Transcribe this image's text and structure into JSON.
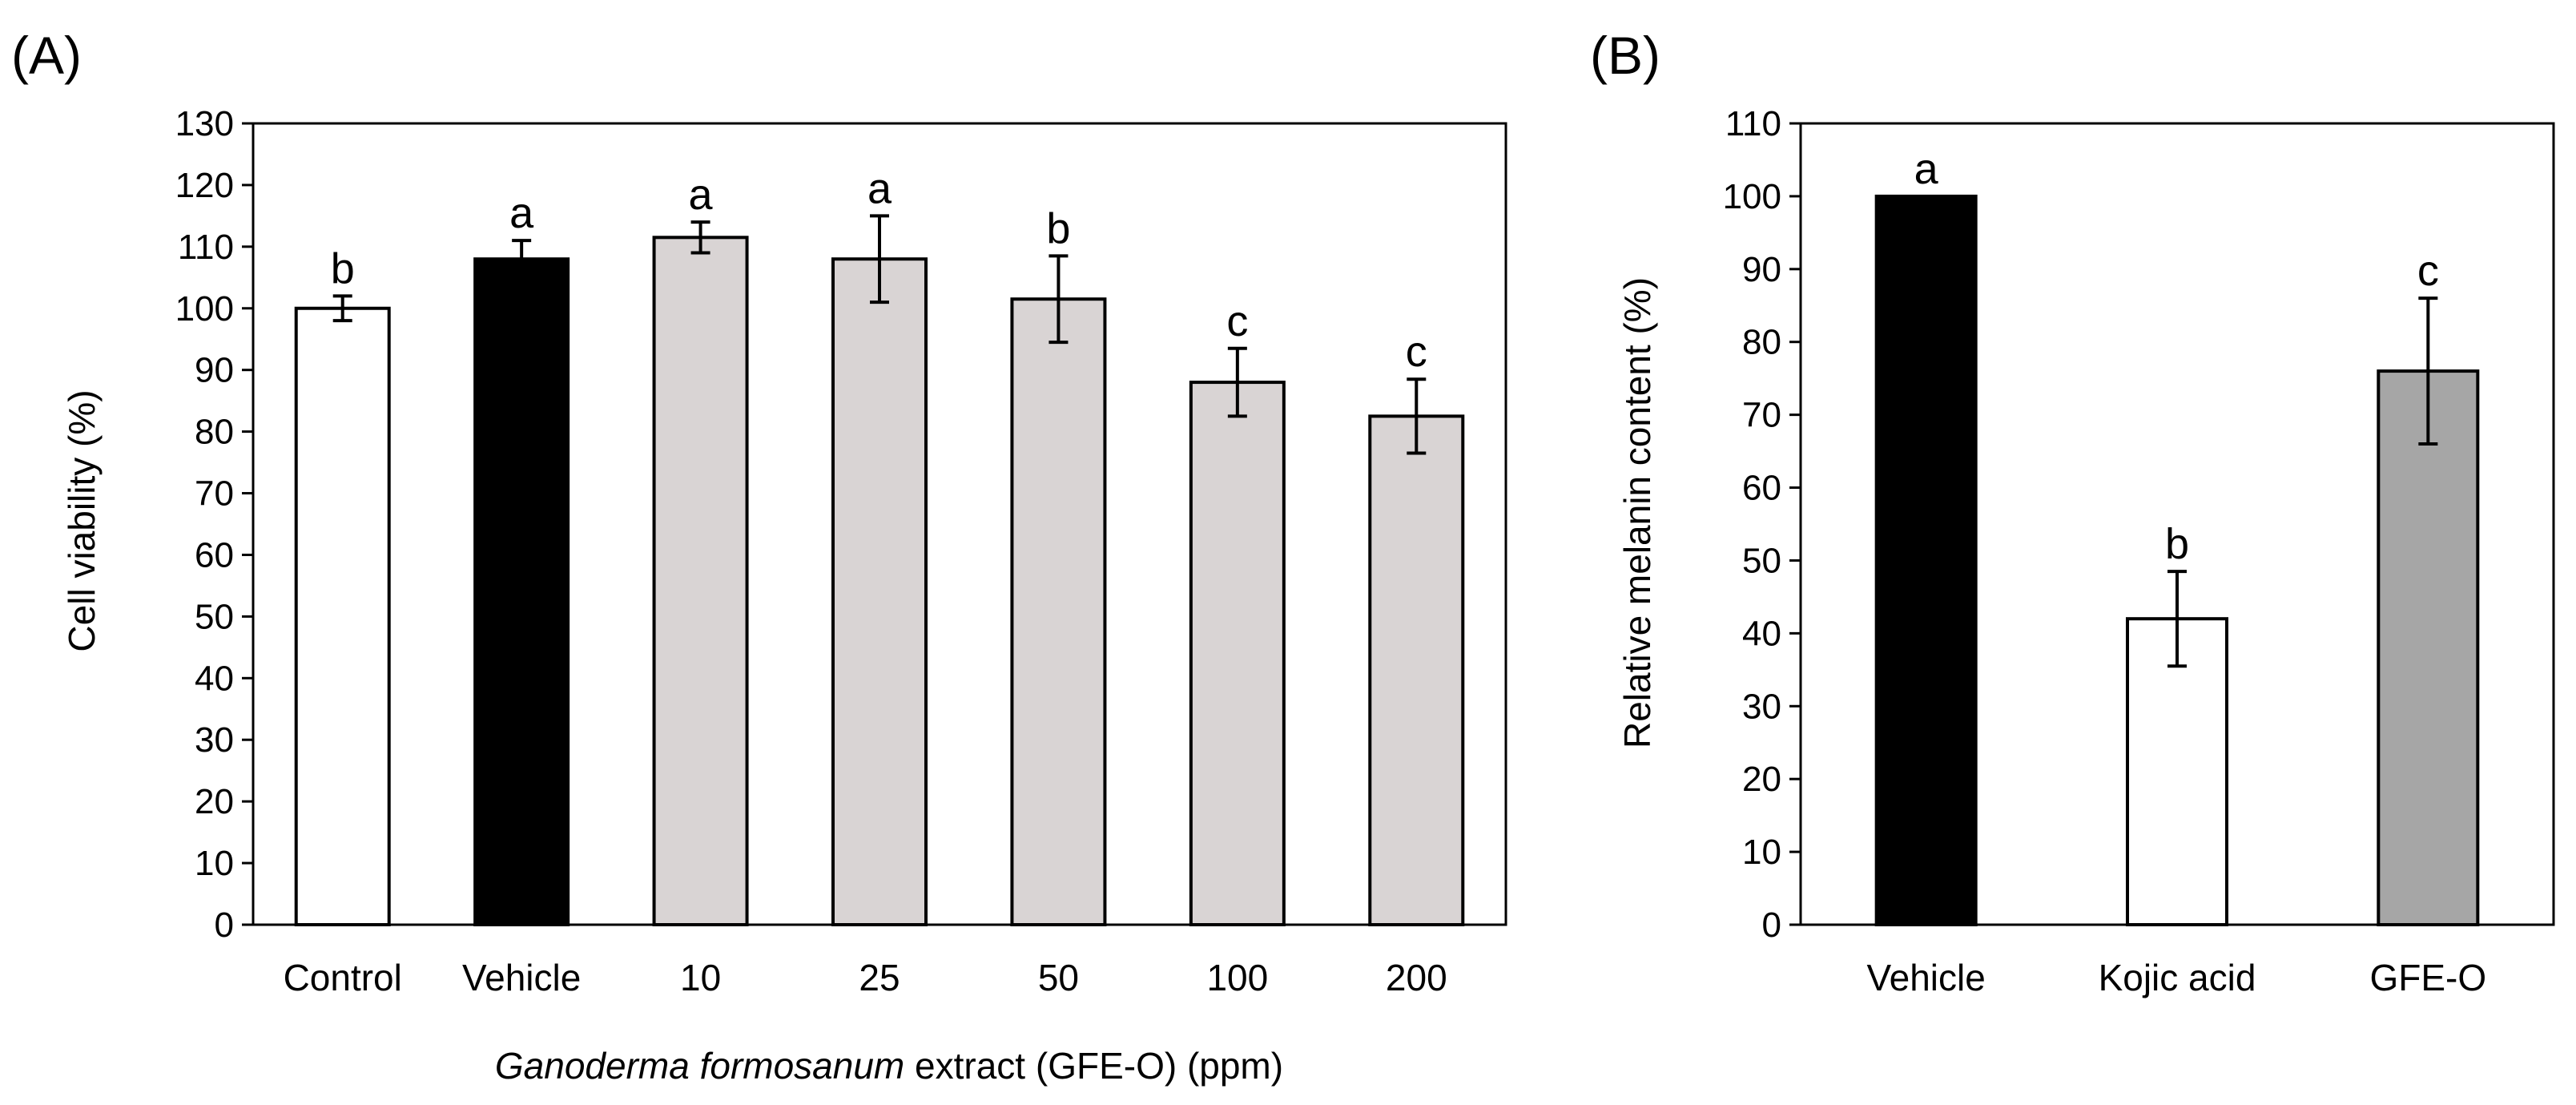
{
  "chart_data": [
    {
      "panel_label": "(A)",
      "type": "bar",
      "ylabel": "Cell viability (%)",
      "xlabel_italic": "Ganoderma formosanum",
      "xlabel_rest": " extract (GFE-O) (ppm)",
      "ylim": [
        0,
        130
      ],
      "ytick_step": 10,
      "categories": [
        "Control",
        "Vehicle",
        "10",
        "25",
        "50",
        "100",
        "200"
      ],
      "values": [
        100,
        108,
        111.5,
        108,
        101.5,
        88,
        82.5
      ],
      "errors": [
        2,
        3,
        2.5,
        7,
        7,
        5.5,
        6
      ],
      "significance": [
        "b",
        "a",
        "a",
        "a",
        "b",
        "c",
        "c"
      ],
      "bar_colors": [
        "#ffffff",
        "#000000",
        "#d9d4d4",
        "#d9d4d4",
        "#d9d4d4",
        "#d9d4d4",
        "#d9d4d4"
      ]
    },
    {
      "panel_label": "(B)",
      "type": "bar",
      "ylabel": "Relative melanin content (%)",
      "ylim": [
        0,
        110
      ],
      "ytick_step": 10,
      "categories": [
        "Vehicle",
        "Kojic acid",
        "GFE-O"
      ],
      "values": [
        100,
        42,
        76
      ],
      "errors": [
        0,
        6.5,
        10
      ],
      "significance": [
        "a",
        "b",
        "c"
      ],
      "bar_colors": [
        "#000000",
        "#ffffff",
        "#a6a6a6"
      ]
    }
  ]
}
